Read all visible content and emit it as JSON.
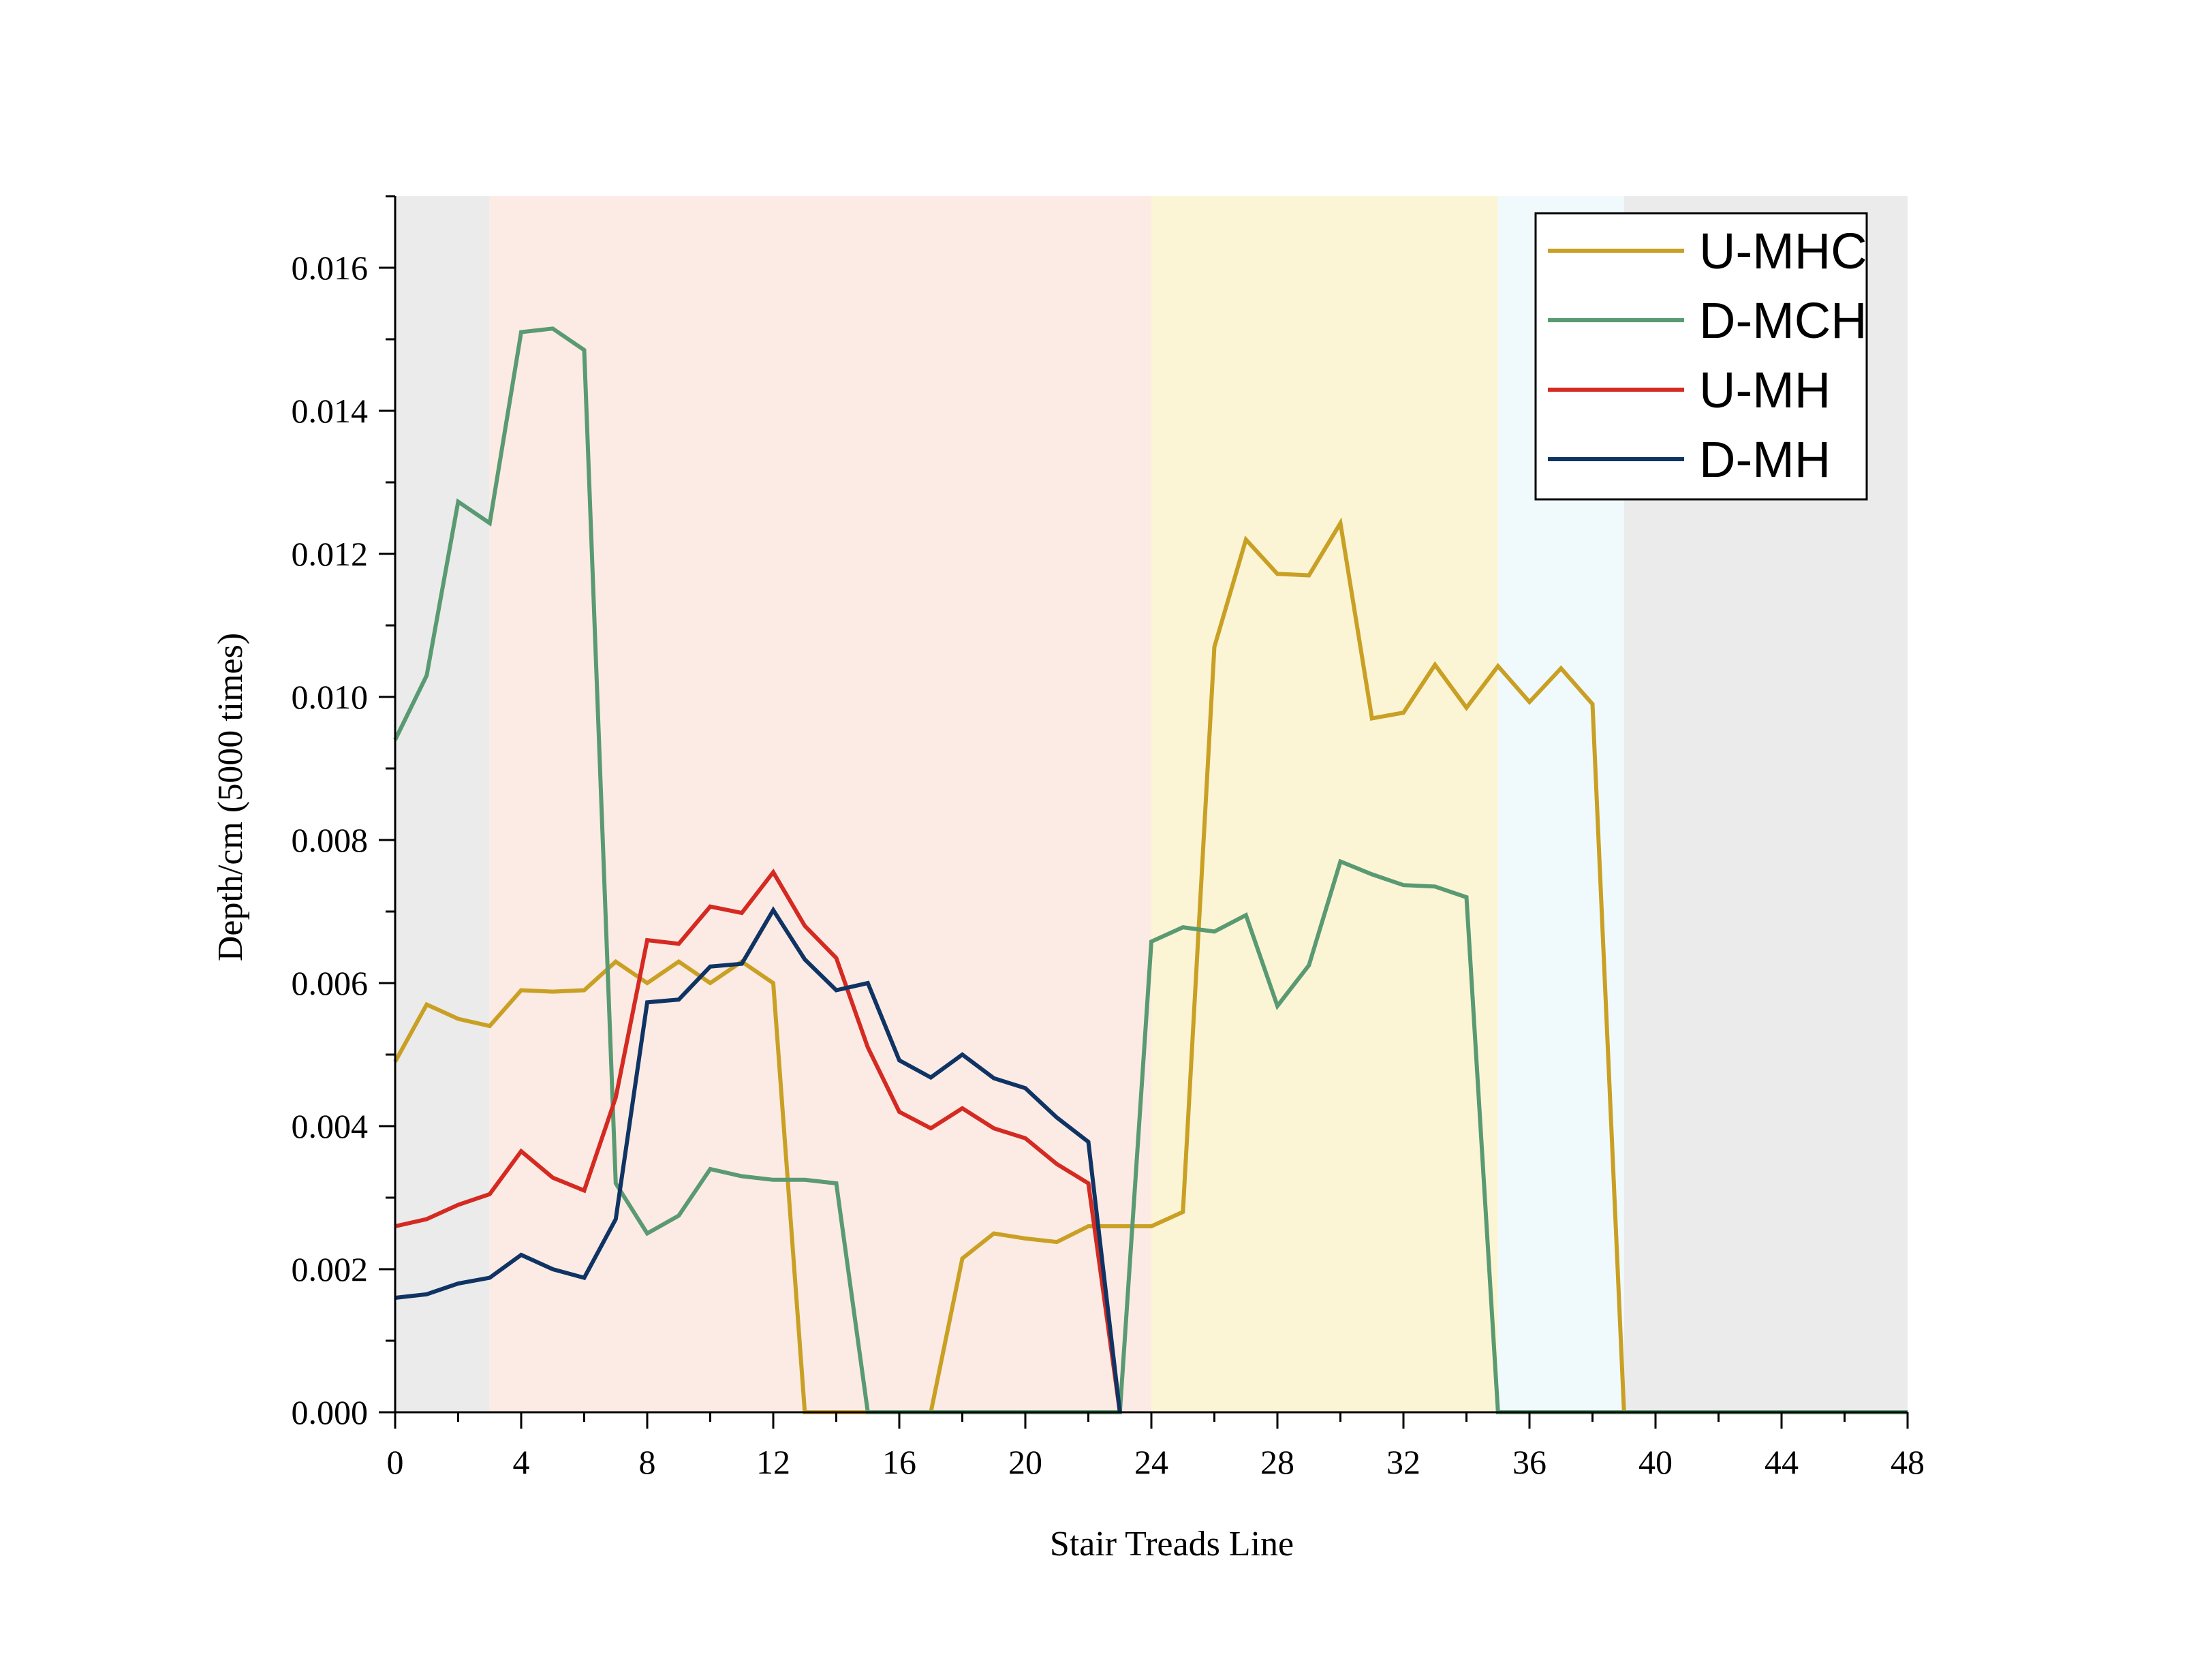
{
  "chart_data": {
    "type": "line",
    "xlabel": "Stair Treads Line",
    "ylabel": "Depth/cm (5000 times)",
    "xlim": [
      0,
      48
    ],
    "ylim": [
      0,
      0.017
    ],
    "xticks": [
      "0",
      "4",
      "8",
      "12",
      "16",
      "20",
      "24",
      "28",
      "32",
      "36",
      "40",
      "44",
      "48"
    ],
    "yticks": [
      "0.000",
      "0.002",
      "0.004",
      "0.006",
      "0.008",
      "0.010",
      "0.012",
      "0.014",
      "0.016"
    ],
    "grid": false,
    "legend_position": "top-right",
    "background_regions": [
      {
        "x0": 0,
        "x1": 3,
        "color": "#ebebeb"
      },
      {
        "x0": 3,
        "x1": 24,
        "color": "#fcebe4"
      },
      {
        "x0": 24,
        "x1": 35,
        "color": "#fbf5d6"
      },
      {
        "x0": 35,
        "x1": 39,
        "color": "#f0fafd"
      },
      {
        "x0": 39,
        "x1": 48,
        "color": "#ebebeb"
      }
    ],
    "series": [
      {
        "name": "U-MHC",
        "color": "#c9a024",
        "points": [
          [
            0,
            0.0049
          ],
          [
            1,
            0.0057
          ],
          [
            2,
            0.0055
          ],
          [
            3,
            0.0054
          ],
          [
            4,
            0.0059
          ],
          [
            5,
            0.00588
          ],
          [
            6,
            0.0059
          ],
          [
            7,
            0.0063
          ],
          [
            8,
            0.006
          ],
          [
            9,
            0.0063
          ],
          [
            10,
            0.006
          ],
          [
            11,
            0.0063
          ],
          [
            12,
            0.006
          ],
          [
            13,
            0.0
          ],
          [
            14,
            0.0
          ],
          [
            15,
            0.0
          ],
          [
            16,
            0.0
          ],
          [
            17,
            0.0
          ],
          [
            18,
            0.00215
          ],
          [
            19,
            0.0025
          ],
          [
            20,
            0.00243
          ],
          [
            21,
            0.00238
          ],
          [
            22,
            0.0026
          ],
          [
            23,
            0.0026
          ],
          [
            24,
            0.0026
          ],
          [
            25,
            0.0028
          ],
          [
            26,
            0.0107
          ],
          [
            27,
            0.0122
          ],
          [
            28,
            0.01172
          ],
          [
            29,
            0.0117
          ],
          [
            30,
            0.01243
          ],
          [
            31,
            0.0097
          ],
          [
            32,
            0.00978
          ],
          [
            33,
            0.01045
          ],
          [
            34,
            0.00985
          ],
          [
            35,
            0.01043
          ],
          [
            36,
            0.00993
          ],
          [
            37,
            0.0104
          ],
          [
            38,
            0.0099
          ],
          [
            39,
            0.0
          ],
          [
            40,
            0.0
          ],
          [
            41,
            0.0
          ],
          [
            42,
            0.0
          ],
          [
            43,
            0.0
          ],
          [
            44,
            0.0
          ],
          [
            45,
            0.0
          ],
          [
            46,
            0.0
          ],
          [
            47,
            0.0
          ],
          [
            48,
            0.0
          ]
        ]
      },
      {
        "name": "D-MCH",
        "color": "#5a9a72",
        "points": [
          [
            0,
            0.0094
          ],
          [
            1,
            0.0103
          ],
          [
            2,
            0.01273
          ],
          [
            3,
            0.01243
          ],
          [
            4,
            0.0151
          ],
          [
            5,
            0.01515
          ],
          [
            6,
            0.01485
          ],
          [
            7,
            0.0032
          ],
          [
            8,
            0.0025
          ],
          [
            9,
            0.00275
          ],
          [
            10,
            0.0034
          ],
          [
            11,
            0.0033
          ],
          [
            12,
            0.00325
          ],
          [
            13,
            0.00325
          ],
          [
            14,
            0.0032
          ],
          [
            15,
            0.0
          ],
          [
            16,
            0.0
          ],
          [
            17,
            0.0
          ],
          [
            18,
            0.0
          ],
          [
            19,
            0.0
          ],
          [
            20,
            0.0
          ],
          [
            21,
            0.0
          ],
          [
            22,
            0.0
          ],
          [
            23,
            0.0
          ],
          [
            24,
            0.00658
          ],
          [
            25,
            0.00678
          ],
          [
            26,
            0.00672
          ],
          [
            27,
            0.00695
          ],
          [
            28,
            0.00568
          ],
          [
            29,
            0.00625
          ],
          [
            30,
            0.0077
          ],
          [
            31,
            0.00752
          ],
          [
            32,
            0.00737
          ],
          [
            33,
            0.00735
          ],
          [
            34,
            0.0072
          ],
          [
            35,
            0.0
          ],
          [
            36,
            0.0
          ],
          [
            37,
            0.0
          ],
          [
            38,
            0.0
          ],
          [
            39,
            0.0
          ],
          [
            40,
            0.0
          ],
          [
            41,
            0.0
          ],
          [
            42,
            0.0
          ],
          [
            43,
            0.0
          ],
          [
            44,
            0.0
          ],
          [
            45,
            0.0
          ],
          [
            46,
            0.0
          ],
          [
            47,
            0.0
          ],
          [
            48,
            0.0
          ]
        ]
      },
      {
        "name": "U-MH",
        "color": "#d42a22",
        "points": [
          [
            0,
            0.0026
          ],
          [
            1,
            0.0027
          ],
          [
            2,
            0.0029
          ],
          [
            3,
            0.00305
          ],
          [
            4,
            0.00365
          ],
          [
            5,
            0.00328
          ],
          [
            6,
            0.0031
          ],
          [
            7,
            0.0044
          ],
          [
            8,
            0.0066
          ],
          [
            9,
            0.00655
          ],
          [
            10,
            0.00707
          ],
          [
            11,
            0.00698
          ],
          [
            12,
            0.00755
          ],
          [
            13,
            0.0068
          ],
          [
            14,
            0.00635
          ],
          [
            15,
            0.0051
          ],
          [
            16,
            0.0042
          ],
          [
            17,
            0.00397
          ],
          [
            18,
            0.00425
          ],
          [
            19,
            0.00397
          ],
          [
            20,
            0.00383
          ],
          [
            21,
            0.00347
          ],
          [
            22,
            0.0032
          ],
          [
            23,
            0.0
          ]
        ]
      },
      {
        "name": "D-MH",
        "color": "#0f3464",
        "points": [
          [
            0,
            0.0016
          ],
          [
            1,
            0.00165
          ],
          [
            2,
            0.0018
          ],
          [
            3,
            0.00188
          ],
          [
            4,
            0.0022
          ],
          [
            5,
            0.002
          ],
          [
            6,
            0.00188
          ],
          [
            7,
            0.0027
          ],
          [
            8,
            0.00573
          ],
          [
            9,
            0.00577
          ],
          [
            10,
            0.00623
          ],
          [
            11,
            0.00627
          ],
          [
            12,
            0.00702
          ],
          [
            13,
            0.00633
          ],
          [
            14,
            0.0059
          ],
          [
            15,
            0.006
          ],
          [
            16,
            0.00492
          ],
          [
            17,
            0.00468
          ],
          [
            18,
            0.005
          ],
          [
            19,
            0.00467
          ],
          [
            20,
            0.00453
          ],
          [
            21,
            0.00412
          ],
          [
            22,
            0.00378
          ],
          [
            23,
            0.0
          ]
        ]
      }
    ]
  }
}
